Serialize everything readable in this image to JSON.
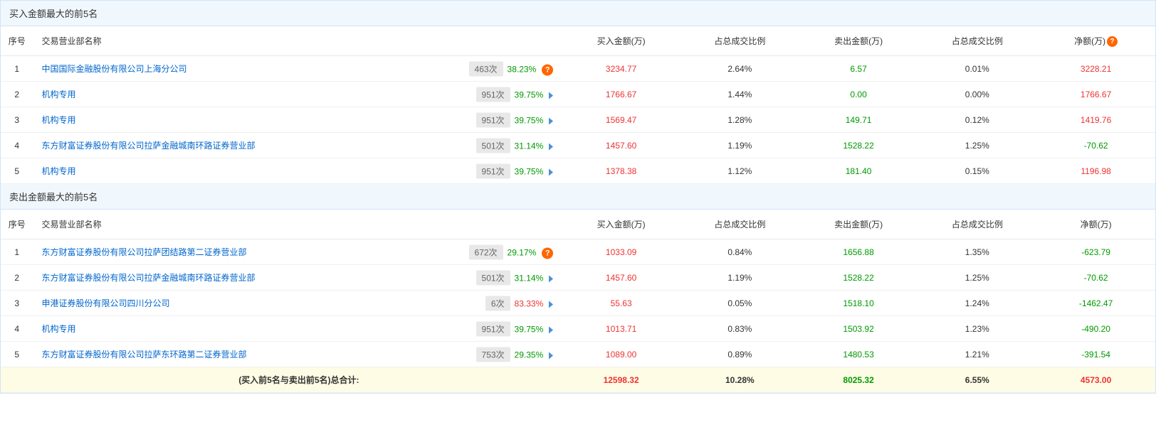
{
  "buy_section": {
    "title": "买入金额最大的前5名",
    "columns": [
      "序号",
      "交易营业部名称",
      "买入金额(万)",
      "占总成交比例",
      "卖出金额(万)",
      "占总成交比例",
      "净额(万)"
    ],
    "rows": [
      {
        "seq": "1",
        "name": "中国国际金融股份有限公司上海分公司",
        "count": "463次",
        "rate": "38.23%",
        "rate_color": "green",
        "icon": "info",
        "buy": "3234.77",
        "buy_pct": "2.64%",
        "sell": "6.57",
        "sell_pct": "0.01%",
        "net": "3228.21",
        "net_color": "red"
      },
      {
        "seq": "2",
        "name": "机构专用",
        "count": "951次",
        "rate": "39.75%",
        "rate_color": "green",
        "icon": "arrow",
        "buy": "1766.67",
        "buy_pct": "1.44%",
        "sell": "0.00",
        "sell_pct": "0.00%",
        "net": "1766.67",
        "net_color": "red"
      },
      {
        "seq": "3",
        "name": "机构专用",
        "count": "951次",
        "rate": "39.75%",
        "rate_color": "green",
        "icon": "arrow",
        "buy": "1569.47",
        "buy_pct": "1.28%",
        "sell": "149.71",
        "sell_pct": "0.12%",
        "net": "1419.76",
        "net_color": "red"
      },
      {
        "seq": "4",
        "name": "东方财富证券股份有限公司拉萨金融城南环路证券营业部",
        "count": "501次",
        "rate": "31.14%",
        "rate_color": "green",
        "icon": "arrow",
        "buy": "1457.60",
        "buy_pct": "1.19%",
        "sell": "1528.22",
        "sell_pct": "1.25%",
        "net": "-70.62",
        "net_color": "green"
      },
      {
        "seq": "5",
        "name": "机构专用",
        "count": "951次",
        "rate": "39.75%",
        "rate_color": "green",
        "icon": "arrow",
        "buy": "1378.38",
        "buy_pct": "1.12%",
        "sell": "181.40",
        "sell_pct": "0.15%",
        "net": "1196.98",
        "net_color": "red"
      }
    ]
  },
  "sell_section": {
    "title": "卖出金额最大的前5名",
    "columns": [
      "序号",
      "交易营业部名称",
      "买入金额(万)",
      "占总成交比例",
      "卖出金额(万)",
      "占总成交比例",
      "净额(万)"
    ],
    "rows": [
      {
        "seq": "1",
        "name": "东方财富证券股份有限公司拉萨团结路第二证券营业部",
        "count": "672次",
        "rate": "29.17%",
        "rate_color": "green",
        "icon": "info",
        "buy": "1033.09",
        "buy_pct": "0.84%",
        "sell": "1656.88",
        "sell_pct": "1.35%",
        "net": "-623.79",
        "net_color": "green"
      },
      {
        "seq": "2",
        "name": "东方财富证券股份有限公司拉萨金融城南环路证券营业部",
        "count": "501次",
        "rate": "31.14%",
        "rate_color": "green",
        "icon": "arrow",
        "buy": "1457.60",
        "buy_pct": "1.19%",
        "sell": "1528.22",
        "sell_pct": "1.25%",
        "net": "-70.62",
        "net_color": "green"
      },
      {
        "seq": "3",
        "name": "申港证券股份有限公司四川分公司",
        "count": "6次",
        "rate": "83.33%",
        "rate_color": "red",
        "icon": "arrow",
        "buy": "55.63",
        "buy_pct": "0.05%",
        "sell": "1518.10",
        "sell_pct": "1.24%",
        "net": "-1462.47",
        "net_color": "green"
      },
      {
        "seq": "4",
        "name": "机构专用",
        "count": "951次",
        "rate": "39.75%",
        "rate_color": "green",
        "icon": "arrow",
        "buy": "1013.71",
        "buy_pct": "0.83%",
        "sell": "1503.92",
        "sell_pct": "1.23%",
        "net": "-490.20",
        "net_color": "green"
      },
      {
        "seq": "5",
        "name": "东方财富证券股份有限公司拉萨东环路第二证券营业部",
        "count": "753次",
        "rate": "29.35%",
        "rate_color": "green",
        "icon": "arrow",
        "buy": "1089.00",
        "buy_pct": "0.89%",
        "sell": "1480.53",
        "sell_pct": "1.21%",
        "net": "-391.54",
        "net_color": "green"
      }
    ]
  },
  "total": {
    "label": "(买入前5名与卖出前5名)总合计:",
    "buy": "12598.32",
    "buy_pct": "10.28%",
    "sell": "8025.32",
    "sell_pct": "6.55%",
    "net": "4573.00"
  },
  "colors": {
    "red": "#e33",
    "green": "#090",
    "link": "#0066cc",
    "section_bg": "#f0f7fd",
    "border": "#d0e4f7",
    "total_bg": "#fffce5"
  }
}
